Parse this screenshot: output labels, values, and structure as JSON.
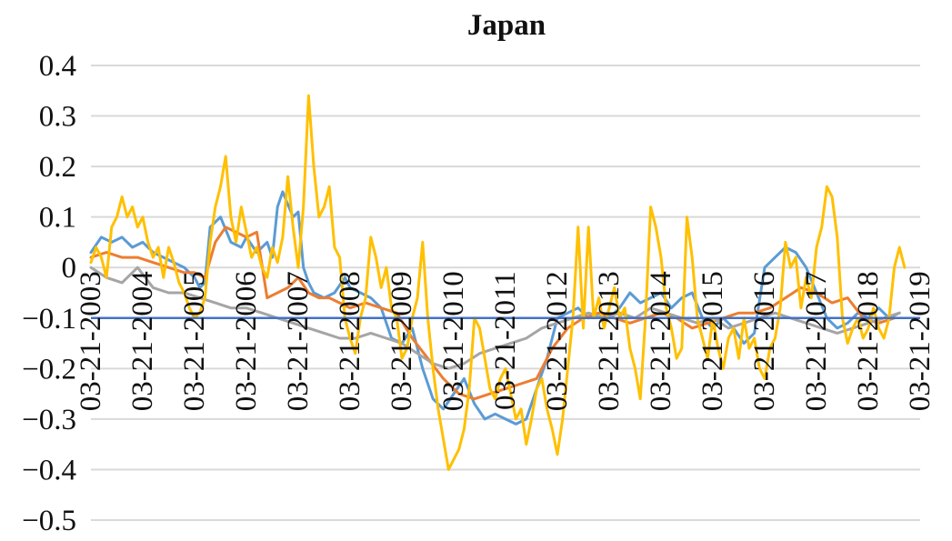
{
  "chart_data": {
    "type": "line",
    "title": "Japan",
    "xlabel": "",
    "ylabel": "",
    "ylim": [
      -0.5,
      0.4
    ],
    "yticks": [
      0.4,
      0.3,
      0.2,
      0.1,
      0,
      -0.1,
      -0.2,
      -0.3,
      -0.4,
      -0.5
    ],
    "ytick_labels": [
      "0.4",
      "0.3",
      "0.2",
      "0.1",
      "0",
      "−0.1",
      "−0.2",
      "−0.3",
      "−0.4",
      "−0.5"
    ],
    "xlim": [
      2003.0,
      2019.0
    ],
    "xtick_labels": [
      "03-21-2003",
      "03-21-2004",
      "03-21-2005",
      "03-21-2006",
      "03-21-2007",
      "03-21-2008",
      "03-21-2009",
      "03-21-2010",
      "03-21-2011",
      "03-21-2012",
      "03-21-2013",
      "03-21-2014",
      "03-21-2015",
      "03-21-2016",
      "03-21-2017",
      "03-21-2018",
      "03-21-2019"
    ],
    "grid": true,
    "legend": "none",
    "reference_line": {
      "y": -0.1,
      "color": "#4472c4"
    },
    "series": [
      {
        "color": "#5b9bd5",
        "x": [
          2003.0,
          2003.2,
          2003.4,
          2003.6,
          2003.8,
          2004.0,
          2004.2,
          2004.4,
          2004.6,
          2004.8,
          2005.0,
          2005.1,
          2005.2,
          2005.3,
          2005.5,
          2005.7,
          2005.9,
          2006.0,
          2006.2,
          2006.4,
          2006.5,
          2006.6,
          2006.7,
          2006.9,
          2007.0,
          2007.1,
          2007.2,
          2007.3,
          2007.5,
          2007.7,
          2007.9,
          2008.0,
          2008.2,
          2008.4,
          2008.6,
          2008.8,
          2009.0,
          2009.2,
          2009.4,
          2009.6,
          2009.8,
          2010.0,
          2010.2,
          2010.4,
          2010.6,
          2010.8,
          2011.0,
          2011.2,
          2011.4,
          2011.6,
          2011.8,
          2012.0,
          2012.2,
          2012.4,
          2012.6,
          2012.8,
          2013.0,
          2013.2,
          2013.4,
          2013.6,
          2013.8,
          2014.0,
          2014.2,
          2014.4,
          2014.6,
          2014.8,
          2015.0,
          2015.2,
          2015.4,
          2015.6,
          2015.8,
          2016.0,
          2016.2,
          2016.4,
          2016.6,
          2016.8,
          2017.0,
          2017.2,
          2017.4,
          2017.6,
          2017.8,
          2018.0,
          2018.2,
          2018.4,
          2018.6
        ],
        "y": [
          0.03,
          0.06,
          0.05,
          0.06,
          0.04,
          0.05,
          0.03,
          0.02,
          0.01,
          0.0,
          -0.02,
          -0.04,
          -0.03,
          0.08,
          0.1,
          0.05,
          0.04,
          0.06,
          0.03,
          0.05,
          0.02,
          0.12,
          0.15,
          0.1,
          0.11,
          0.0,
          -0.03,
          -0.05,
          -0.06,
          -0.05,
          -0.02,
          -0.04,
          -0.05,
          -0.06,
          -0.08,
          -0.14,
          -0.15,
          -0.12,
          -0.2,
          -0.26,
          -0.28,
          -0.25,
          -0.22,
          -0.27,
          -0.3,
          -0.29,
          -0.3,
          -0.31,
          -0.3,
          -0.24,
          -0.18,
          -0.1,
          -0.09,
          -0.08,
          -0.1,
          -0.09,
          -0.1,
          -0.08,
          -0.05,
          -0.07,
          -0.06,
          -0.05,
          -0.08,
          -0.06,
          -0.05,
          -0.1,
          -0.12,
          -0.1,
          -0.12,
          -0.15,
          -0.13,
          0.0,
          0.02,
          0.04,
          0.03,
          0.0,
          -0.05,
          -0.1,
          -0.12,
          -0.11,
          -0.09,
          -0.1,
          -0.08,
          -0.1,
          -0.09
        ]
      },
      {
        "color": "#ed7d31",
        "x": [
          2003.0,
          2003.3,
          2003.6,
          2003.9,
          2004.2,
          2004.5,
          2004.8,
          2005.0,
          2005.2,
          2005.4,
          2005.6,
          2005.8,
          2006.0,
          2006.2,
          2006.4,
          2006.6,
          2006.8,
          2007.0,
          2007.2,
          2007.4,
          2007.6,
          2007.8,
          2008.0,
          2008.3,
          2008.6,
          2008.9,
          2009.2,
          2009.5,
          2009.8,
          2010.1,
          2010.4,
          2010.7,
          2011.0,
          2011.3,
          2011.6,
          2011.9,
          2012.2,
          2012.5,
          2012.8,
          2013.1,
          2013.4,
          2013.7,
          2014.0,
          2014.3,
          2014.6,
          2014.9,
          2015.2,
          2015.5,
          2015.8,
          2016.1,
          2016.4,
          2016.7,
          2017.0,
          2017.3,
          2017.6,
          2017.9,
          2018.2,
          2018.5
        ],
        "y": [
          0.02,
          0.03,
          0.02,
          0.02,
          0.01,
          0.0,
          -0.01,
          -0.01,
          -0.02,
          0.05,
          0.08,
          0.07,
          0.06,
          0.07,
          -0.06,
          -0.05,
          -0.04,
          -0.02,
          -0.05,
          -0.06,
          -0.06,
          -0.07,
          -0.08,
          -0.07,
          -0.08,
          -0.09,
          -0.14,
          -0.18,
          -0.22,
          -0.25,
          -0.26,
          -0.25,
          -0.24,
          -0.23,
          -0.22,
          -0.16,
          -0.12,
          -0.1,
          -0.09,
          -0.1,
          -0.11,
          -0.1,
          -0.09,
          -0.1,
          -0.12,
          -0.11,
          -0.1,
          -0.09,
          -0.09,
          -0.08,
          -0.06,
          -0.04,
          -0.05,
          -0.07,
          -0.06,
          -0.1,
          -0.11,
          -0.1
        ]
      },
      {
        "color": "#a5a5a5",
        "x": [
          2003.0,
          2003.3,
          2003.6,
          2003.9,
          2004.2,
          2004.5,
          2004.8,
          2005.1,
          2005.4,
          2005.7,
          2006.0,
          2006.3,
          2006.6,
          2006.9,
          2007.2,
          2007.5,
          2007.8,
          2008.1,
          2008.4,
          2008.7,
          2009.0,
          2009.3,
          2009.6,
          2009.9,
          2010.2,
          2010.5,
          2010.8,
          2011.1,
          2011.4,
          2011.7,
          2012.0,
          2012.3,
          2012.6,
          2012.9,
          2013.2,
          2013.5,
          2013.8,
          2014.1,
          2014.4,
          2014.7,
          2015.0,
          2015.3,
          2015.6,
          2015.9,
          2016.2,
          2016.5,
          2016.8,
          2017.1,
          2017.4,
          2017.7,
          2018.0,
          2018.3,
          2018.6
        ],
        "y": [
          0.0,
          -0.02,
          -0.03,
          0.0,
          -0.04,
          -0.05,
          -0.05,
          -0.06,
          -0.07,
          -0.08,
          -0.08,
          -0.09,
          -0.1,
          -0.11,
          -0.12,
          -0.13,
          -0.14,
          -0.14,
          -0.13,
          -0.14,
          -0.15,
          -0.17,
          -0.19,
          -0.2,
          -0.19,
          -0.17,
          -0.16,
          -0.15,
          -0.14,
          -0.12,
          -0.11,
          -0.1,
          -0.09,
          -0.1,
          -0.09,
          -0.1,
          -0.08,
          -0.09,
          -0.1,
          -0.11,
          -0.1,
          -0.12,
          -0.11,
          -0.1,
          -0.09,
          -0.1,
          -0.11,
          -0.12,
          -0.13,
          -0.12,
          -0.11,
          -0.1,
          -0.09
        ]
      },
      {
        "color": "#ffc000",
        "x": [
          2003.0,
          2003.1,
          2003.2,
          2003.3,
          2003.4,
          2003.5,
          2003.6,
          2003.7,
          2003.8,
          2003.9,
          2004.0,
          2004.1,
          2004.2,
          2004.3,
          2004.4,
          2004.5,
          2004.6,
          2004.7,
          2004.8,
          2004.9,
          2005.0,
          2005.1,
          2005.2,
          2005.3,
          2005.4,
          2005.5,
          2005.6,
          2005.7,
          2005.8,
          2005.9,
          2006.0,
          2006.1,
          2006.2,
          2006.3,
          2006.4,
          2006.5,
          2006.6,
          2006.7,
          2006.8,
          2006.9,
          2007.0,
          2007.1,
          2007.2,
          2007.3,
          2007.4,
          2007.5,
          2007.6,
          2007.7,
          2007.8,
          2007.9,
          2008.0,
          2008.1,
          2008.2,
          2008.3,
          2008.4,
          2008.5,
          2008.6,
          2008.7,
          2008.8,
          2008.9,
          2009.0,
          2009.1,
          2009.2,
          2009.3,
          2009.4,
          2009.5,
          2009.6,
          2009.7,
          2009.8,
          2009.9,
          2010.0,
          2010.1,
          2010.2,
          2010.3,
          2010.4,
          2010.5,
          2010.6,
          2010.7,
          2010.8,
          2010.9,
          2011.0,
          2011.1,
          2011.2,
          2011.3,
          2011.4,
          2011.5,
          2011.6,
          2011.7,
          2011.8,
          2011.9,
          2012.0,
          2012.1,
          2012.2,
          2012.3,
          2012.4,
          2012.5,
          2012.6,
          2012.7,
          2012.8,
          2012.9,
          2013.0,
          2013.1,
          2013.2,
          2013.3,
          2013.4,
          2013.5,
          2013.6,
          2013.7,
          2013.8,
          2013.9,
          2014.0,
          2014.1,
          2014.2,
          2014.3,
          2014.4,
          2014.5,
          2014.6,
          2014.7,
          2014.8,
          2014.9,
          2015.0,
          2015.1,
          2015.2,
          2015.3,
          2015.4,
          2015.5,
          2015.6,
          2015.7,
          2015.8,
          2015.9,
          2016.0,
          2016.1,
          2016.2,
          2016.3,
          2016.4,
          2016.5,
          2016.6,
          2016.7,
          2016.8,
          2016.9,
          2017.0,
          2017.1,
          2017.2,
          2017.3,
          2017.4,
          2017.5,
          2017.6,
          2017.7,
          2017.8,
          2017.9,
          2018.0,
          2018.1,
          2018.2,
          2018.3,
          2018.4,
          2018.5,
          2018.6,
          2018.7
        ],
        "y": [
          0.01,
          0.04,
          0.02,
          -0.02,
          0.08,
          0.1,
          0.14,
          0.1,
          0.12,
          0.08,
          0.1,
          0.05,
          0.02,
          0.04,
          -0.02,
          0.04,
          0.01,
          -0.03,
          -0.05,
          -0.08,
          -0.1,
          -0.09,
          -0.06,
          0.05,
          0.12,
          0.16,
          0.22,
          0.1,
          0.05,
          0.12,
          0.07,
          0.02,
          0.04,
          0.0,
          -0.02,
          0.04,
          0.01,
          0.06,
          0.18,
          0.08,
          0.0,
          0.12,
          0.34,
          0.2,
          0.1,
          0.12,
          0.16,
          0.04,
          0.02,
          -0.1,
          -0.14,
          -0.17,
          -0.1,
          -0.06,
          0.06,
          0.02,
          -0.04,
          0.0,
          -0.08,
          -0.1,
          -0.18,
          -0.16,
          -0.1,
          -0.06,
          0.05,
          -0.1,
          -0.2,
          -0.28,
          -0.34,
          -0.4,
          -0.38,
          -0.36,
          -0.32,
          -0.24,
          -0.1,
          -0.12,
          -0.18,
          -0.24,
          -0.26,
          -0.22,
          -0.2,
          -0.25,
          -0.3,
          -0.28,
          -0.35,
          -0.3,
          -0.24,
          -0.22,
          -0.28,
          -0.32,
          -0.37,
          -0.3,
          -0.2,
          -0.1,
          0.08,
          -0.12,
          0.08,
          -0.1,
          -0.06,
          -0.12,
          -0.08,
          -0.04,
          -0.1,
          -0.08,
          -0.16,
          -0.2,
          -0.26,
          -0.1,
          0.12,
          0.08,
          0.02,
          -0.08,
          -0.12,
          -0.18,
          -0.16,
          0.1,
          0.02,
          -0.1,
          -0.14,
          -0.18,
          -0.1,
          -0.16,
          -0.2,
          -0.14,
          -0.12,
          -0.18,
          -0.1,
          -0.16,
          -0.14,
          -0.2,
          -0.22,
          -0.16,
          -0.14,
          -0.08,
          0.05,
          0.0,
          0.02,
          -0.08,
          -0.02,
          -0.06,
          0.04,
          0.08,
          0.16,
          0.14,
          0.06,
          -0.1,
          -0.15,
          -0.12,
          -0.1,
          -0.14,
          -0.12,
          -0.08,
          -0.12,
          -0.14,
          -0.1,
          0.0,
          0.04,
          0.0
        ]
      }
    ]
  }
}
